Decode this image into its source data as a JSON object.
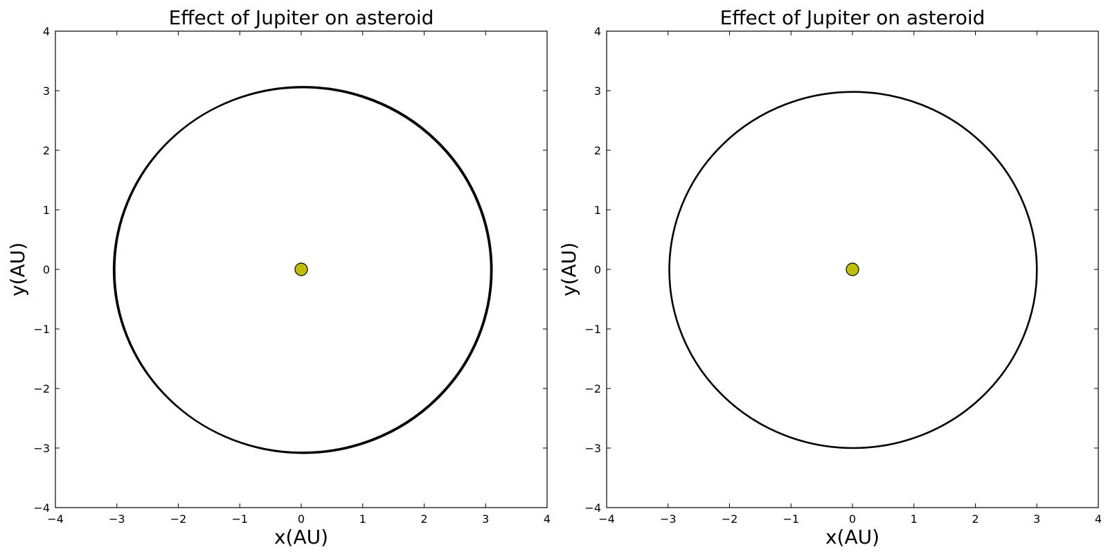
{
  "chart_data": [
    {
      "type": "line",
      "title": "Effect of Jupiter on asteroid",
      "xlabel": "x(AU)",
      "ylabel": "y(AU)",
      "xlim": [
        -4,
        4
      ],
      "ylim": [
        -4,
        4
      ],
      "xticks": [
        "−4",
        "−3",
        "−2",
        "−1",
        "0",
        "1",
        "2",
        "3",
        "4"
      ],
      "yticks": [
        "−4",
        "−3",
        "−2",
        "−1",
        "0",
        "1",
        "2",
        "3",
        "4"
      ],
      "grid": false,
      "series": [
        {
          "kind": "orbit",
          "color": "#000000",
          "x_extent": [
            -3.05,
            3.1
          ],
          "y_extent": [
            -3.08,
            3.06
          ],
          "thick_band": true
        },
        {
          "kind": "sun-marker",
          "x": 0,
          "y": 0,
          "color": "#bfbf00"
        }
      ]
    },
    {
      "type": "line",
      "title": "Effect of Jupiter on asteroid",
      "xlabel": "x(AU)",
      "ylabel": "y(AU)",
      "xlim": [
        -4,
        4
      ],
      "ylim": [
        -4,
        4
      ],
      "xticks": [
        "−4",
        "−3",
        "−2",
        "−1",
        "0",
        "1",
        "2",
        "3",
        "4"
      ],
      "yticks": [
        "−4",
        "−3",
        "−2",
        "−1",
        "0",
        "1",
        "2",
        "3",
        "4"
      ],
      "grid": false,
      "series": [
        {
          "kind": "orbit",
          "color": "#000000",
          "x_extent": [
            -2.98,
            3.0
          ],
          "y_extent": [
            -3.0,
            2.98
          ],
          "thick_band": false
        },
        {
          "kind": "sun-marker",
          "x": 0,
          "y": 0,
          "color": "#bfbf00"
        }
      ]
    }
  ]
}
